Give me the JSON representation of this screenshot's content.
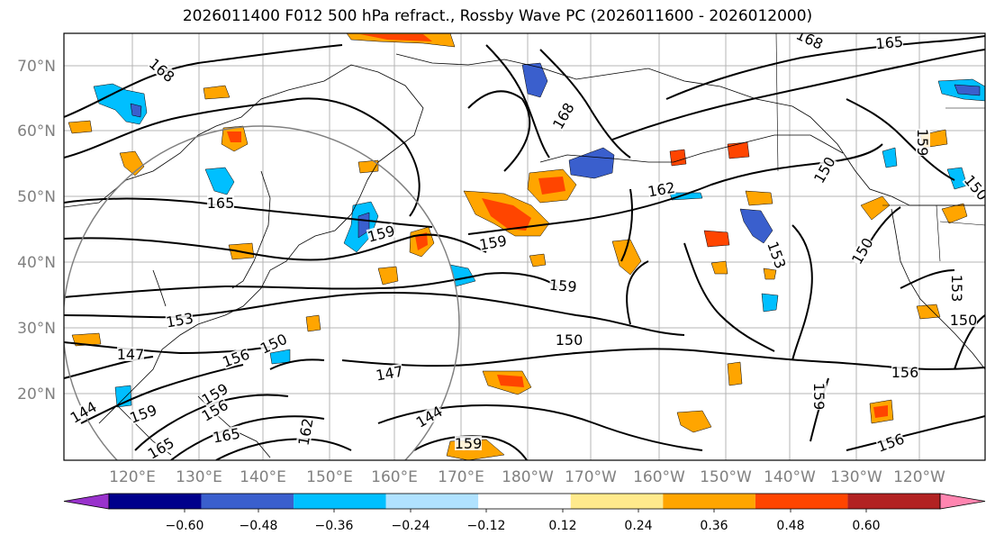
{
  "title": "2026011400 F012 500 hPa refract., Rossby Wave PC (2026011600 - 2026012000)",
  "lat_labels": [
    "70°N",
    "60°N",
    "50°N",
    "40°N",
    "30°N",
    "20°N"
  ],
  "lon_labels": [
    "120°E",
    "130°E",
    "140°E",
    "150°E",
    "160°E",
    "170°E",
    "180°W",
    "170°W",
    "160°W",
    "150°W",
    "140°W",
    "130°W",
    "120°W"
  ],
  "contour_labels": [
    "168",
    "168",
    "165",
    "168",
    "165",
    "159",
    "159",
    "159",
    "162",
    "153",
    "150",
    "147",
    "150",
    "156",
    "159",
    "165",
    "147",
    "144",
    "144",
    "162",
    "159",
    "150",
    "156",
    "159",
    "156",
    "150",
    "153",
    "159",
    "150",
    "153",
    "150",
    "156",
    "159",
    "165"
  ],
  "colorbar": {
    "ticks": [
      "−0.60",
      "−0.48",
      "−0.36",
      "−0.24",
      "−0.12",
      "0.12",
      "0.24",
      "0.36",
      "0.48",
      "0.60"
    ],
    "colors": [
      "#9932cc",
      "#00008b",
      "#3a5fcd",
      "#00bfff",
      "#b0e2ff",
      "#ffffff",
      "#ffea8c",
      "#ffa500",
      "#ff4500",
      "#b22222",
      "#ff85b0"
    ]
  }
}
